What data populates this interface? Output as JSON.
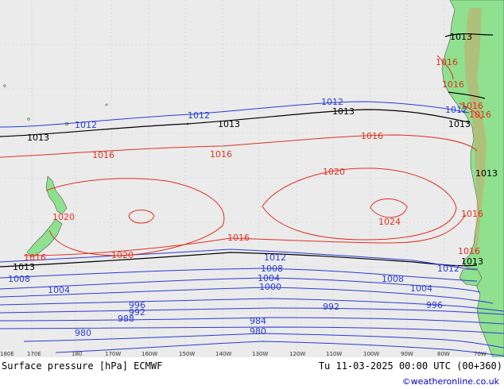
{
  "title": "Surface pressure [hPa] ECMWF",
  "valid_time": "Tu 11-03-2025 00:00 UTC (00+360)",
  "credit": "©weatheronline.co.uk",
  "colors": {
    "ocean": "#ebebeb",
    "land": "#8fe08f",
    "low": "#2a3bd6",
    "high": "#e03020",
    "ref": "#000000"
  },
  "lon_ticks": [
    "180E",
    "170E",
    "180",
    "170W",
    "160W",
    "150W",
    "140W",
    "130W",
    "120W",
    "110W",
    "100W",
    "90W",
    "80W",
    "70W"
  ],
  "isobar_labels": {
    "black": [
      "1013",
      "1013",
      "1013",
      "1013",
      "1013",
      "1013",
      "1013",
      "1013"
    ],
    "blue": [
      "1012",
      "1012",
      "1012",
      "1012",
      "1012",
      "1008",
      "1008",
      "1008",
      "1004",
      "1004",
      "1004",
      "1000",
      "996",
      "996",
      "992",
      "992",
      "988",
      "984",
      "980",
      "980",
      "1012"
    ],
    "red": [
      "1016",
      "1016",
      "1016",
      "1016",
      "1016",
      "1016",
      "1020",
      "1020",
      "1020",
      "1024",
      "1016",
      "1016",
      "1016",
      "1016",
      "1016"
    ]
  }
}
